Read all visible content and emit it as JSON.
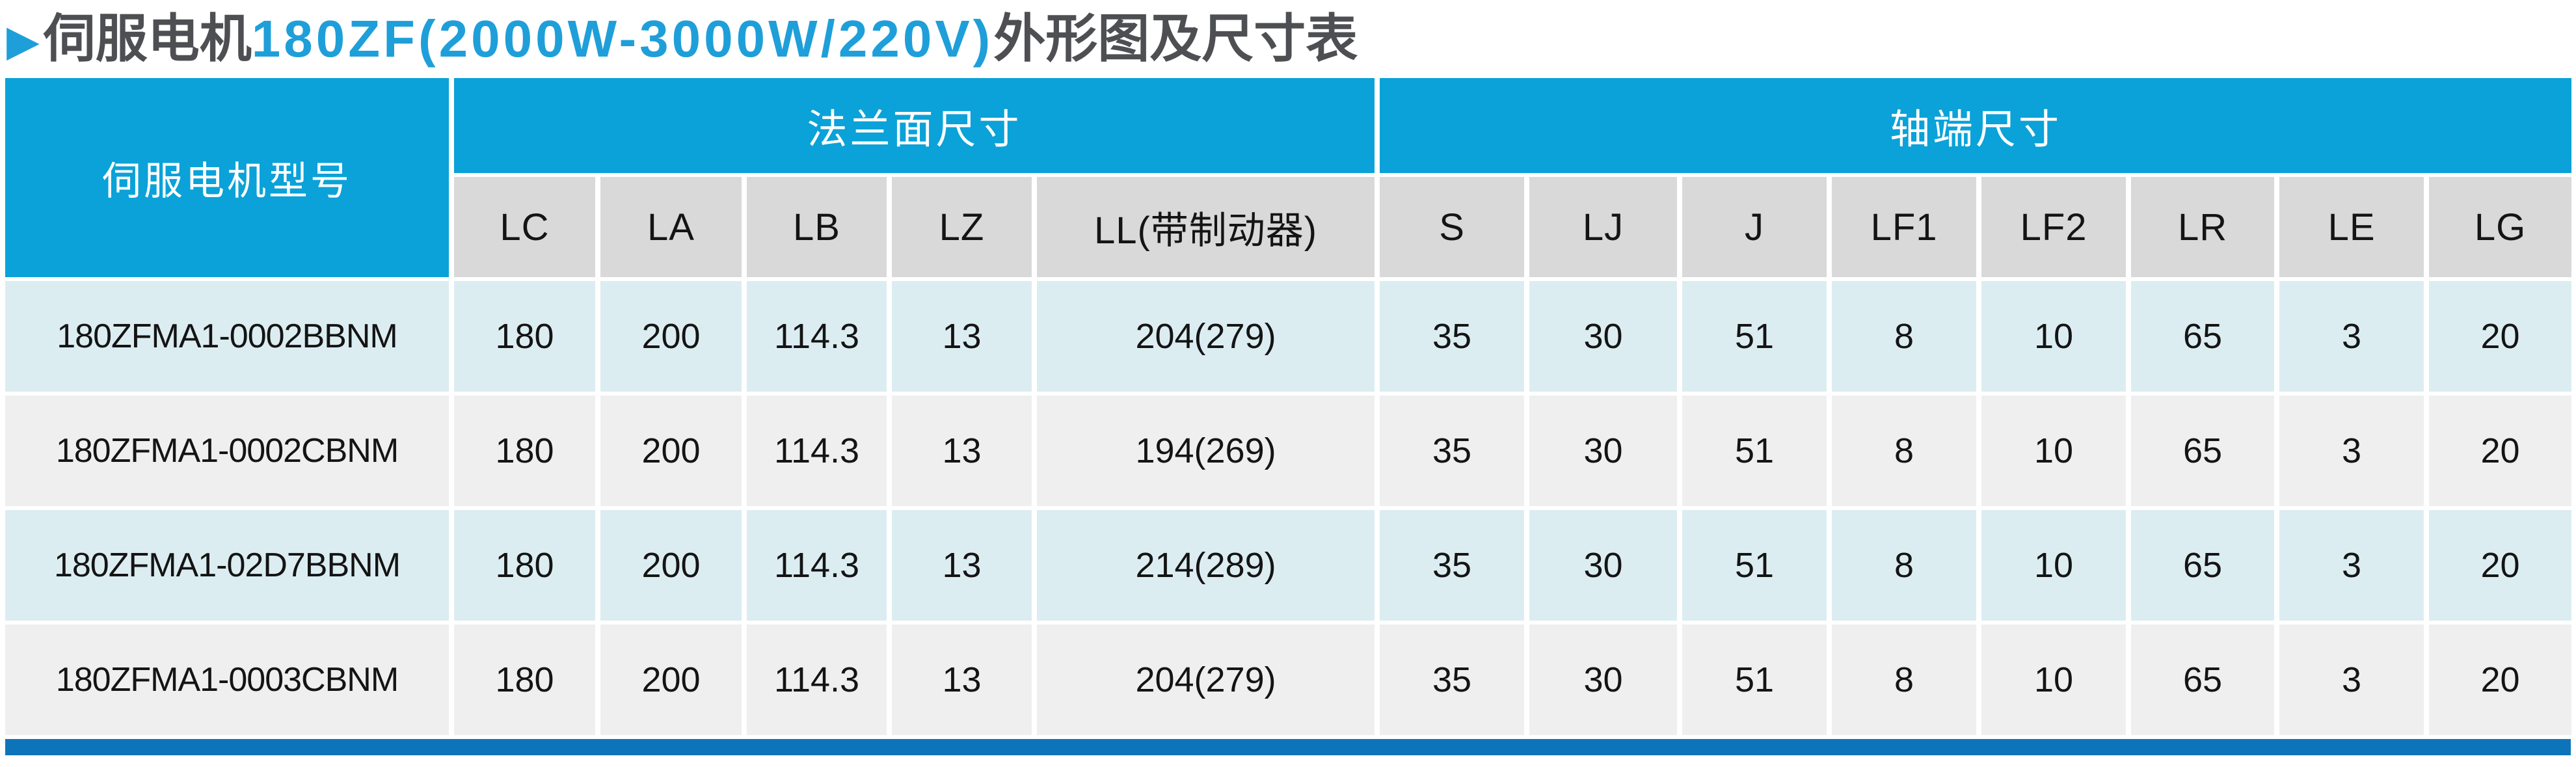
{
  "title": {
    "arrow": "▶",
    "prefix": "伺服电机",
    "model_range": "180ZF(2000W-3000W/220V)",
    "suffix": "外形图及尺寸表"
  },
  "table": {
    "model_header": "伺服电机型号",
    "groups": [
      {
        "label": "法兰面尺寸",
        "colspan": 5
      },
      {
        "label": "轴端尺寸",
        "colspan": 8
      }
    ],
    "columns": [
      "LC",
      "LA",
      "LB",
      "LZ",
      "LL(带制动器)",
      "S",
      "LJ",
      "J",
      "LF1",
      "LF2",
      "LR",
      "LE",
      "LG"
    ],
    "rows": [
      {
        "model": "180ZFMA1-0002BBNM",
        "values": [
          "180",
          "200",
          "114.3",
          "13",
          "204(279)",
          "35",
          "30",
          "51",
          "8",
          "10",
          "65",
          "3",
          "20"
        ]
      },
      {
        "model": "180ZFMA1-0002CBNM",
        "values": [
          "180",
          "200",
          "114.3",
          "13",
          "194(269)",
          "35",
          "30",
          "51",
          "8",
          "10",
          "65",
          "3",
          "20"
        ]
      },
      {
        "model": "180ZFMA1-02D7BBNM",
        "values": [
          "180",
          "200",
          "114.3",
          "13",
          "214(289)",
          "35",
          "30",
          "51",
          "8",
          "10",
          "65",
          "3",
          "20"
        ]
      },
      {
        "model": "180ZFMA1-0003CBNM",
        "values": [
          "180",
          "200",
          "114.3",
          "13",
          "204(279)",
          "35",
          "30",
          "51",
          "8",
          "10",
          "65",
          "3",
          "20"
        ]
      }
    ]
  },
  "colors": {
    "header_blue": "#0aa2d8",
    "title_blue": "#1f9fd9",
    "title_dark": "#4e4f52",
    "subheader_gray": "#d9d9d9",
    "row_light_blue": "#dcedf2",
    "row_light_gray": "#efefef",
    "bottom_bar_blue": "#0d74ba",
    "cell_text": "#141414"
  }
}
